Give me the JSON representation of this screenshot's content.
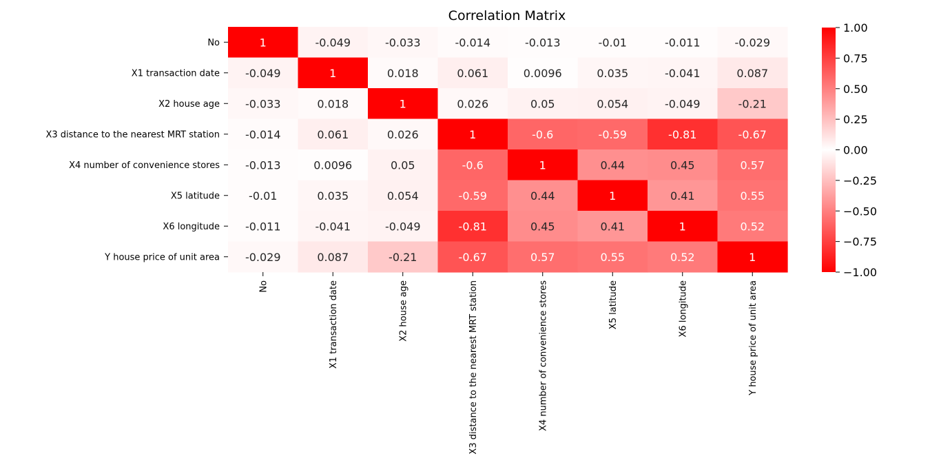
{
  "chart_data": {
    "type": "heatmap",
    "title": "Correlation Matrix",
    "x_labels": [
      "No",
      "X1 transaction date",
      "X2 house age",
      "X3 distance to the nearest MRT station",
      "X4 number of convenience stores",
      "X5 latitude",
      "X6 longitude",
      "Y house price of unit area"
    ],
    "y_labels": [
      "No",
      "X1 transaction date",
      "X2 house age",
      "X3 distance to the nearest MRT station",
      "X4 number of convenience stores",
      "X5 latitude",
      "X6 longitude",
      "Y house price of unit area"
    ],
    "values": [
      [
        1,
        -0.049,
        -0.033,
        -0.014,
        -0.013,
        -0.01,
        -0.011,
        -0.029
      ],
      [
        -0.049,
        1,
        0.018,
        0.061,
        0.0096,
        0.035,
        -0.041,
        0.087
      ],
      [
        -0.033,
        0.018,
        1,
        0.026,
        0.05,
        0.054,
        -0.049,
        -0.21
      ],
      [
        -0.014,
        0.061,
        0.026,
        1,
        -0.6,
        -0.59,
        -0.81,
        -0.67
      ],
      [
        -0.013,
        0.0096,
        0.05,
        -0.6,
        1,
        0.44,
        0.45,
        0.57
      ],
      [
        -0.01,
        0.035,
        0.054,
        -0.59,
        0.44,
        1,
        0.41,
        0.55
      ],
      [
        -0.011,
        -0.041,
        -0.049,
        -0.81,
        0.45,
        0.41,
        1,
        0.52
      ],
      [
        -0.029,
        0.087,
        -0.21,
        -0.67,
        0.57,
        0.55,
        0.52,
        1
      ]
    ],
    "colorbar": {
      "vmin": -1.0,
      "vmax": 1.0,
      "ticks": [
        "1.00",
        "0.75",
        "0.50",
        "0.25",
        "0.00",
        "−0.25",
        "−0.50",
        "−0.75",
        "−1.00"
      ],
      "tick_values": [
        1.0,
        0.75,
        0.5,
        0.25,
        0.0,
        -0.25,
        -0.5,
        -0.75,
        -1.0
      ],
      "colors": {
        "extreme": "#ff0000",
        "center": "#ffffff"
      }
    },
    "annotation_colors": {
      "dark_text": "#262626",
      "light_text": "#ffffff"
    }
  }
}
